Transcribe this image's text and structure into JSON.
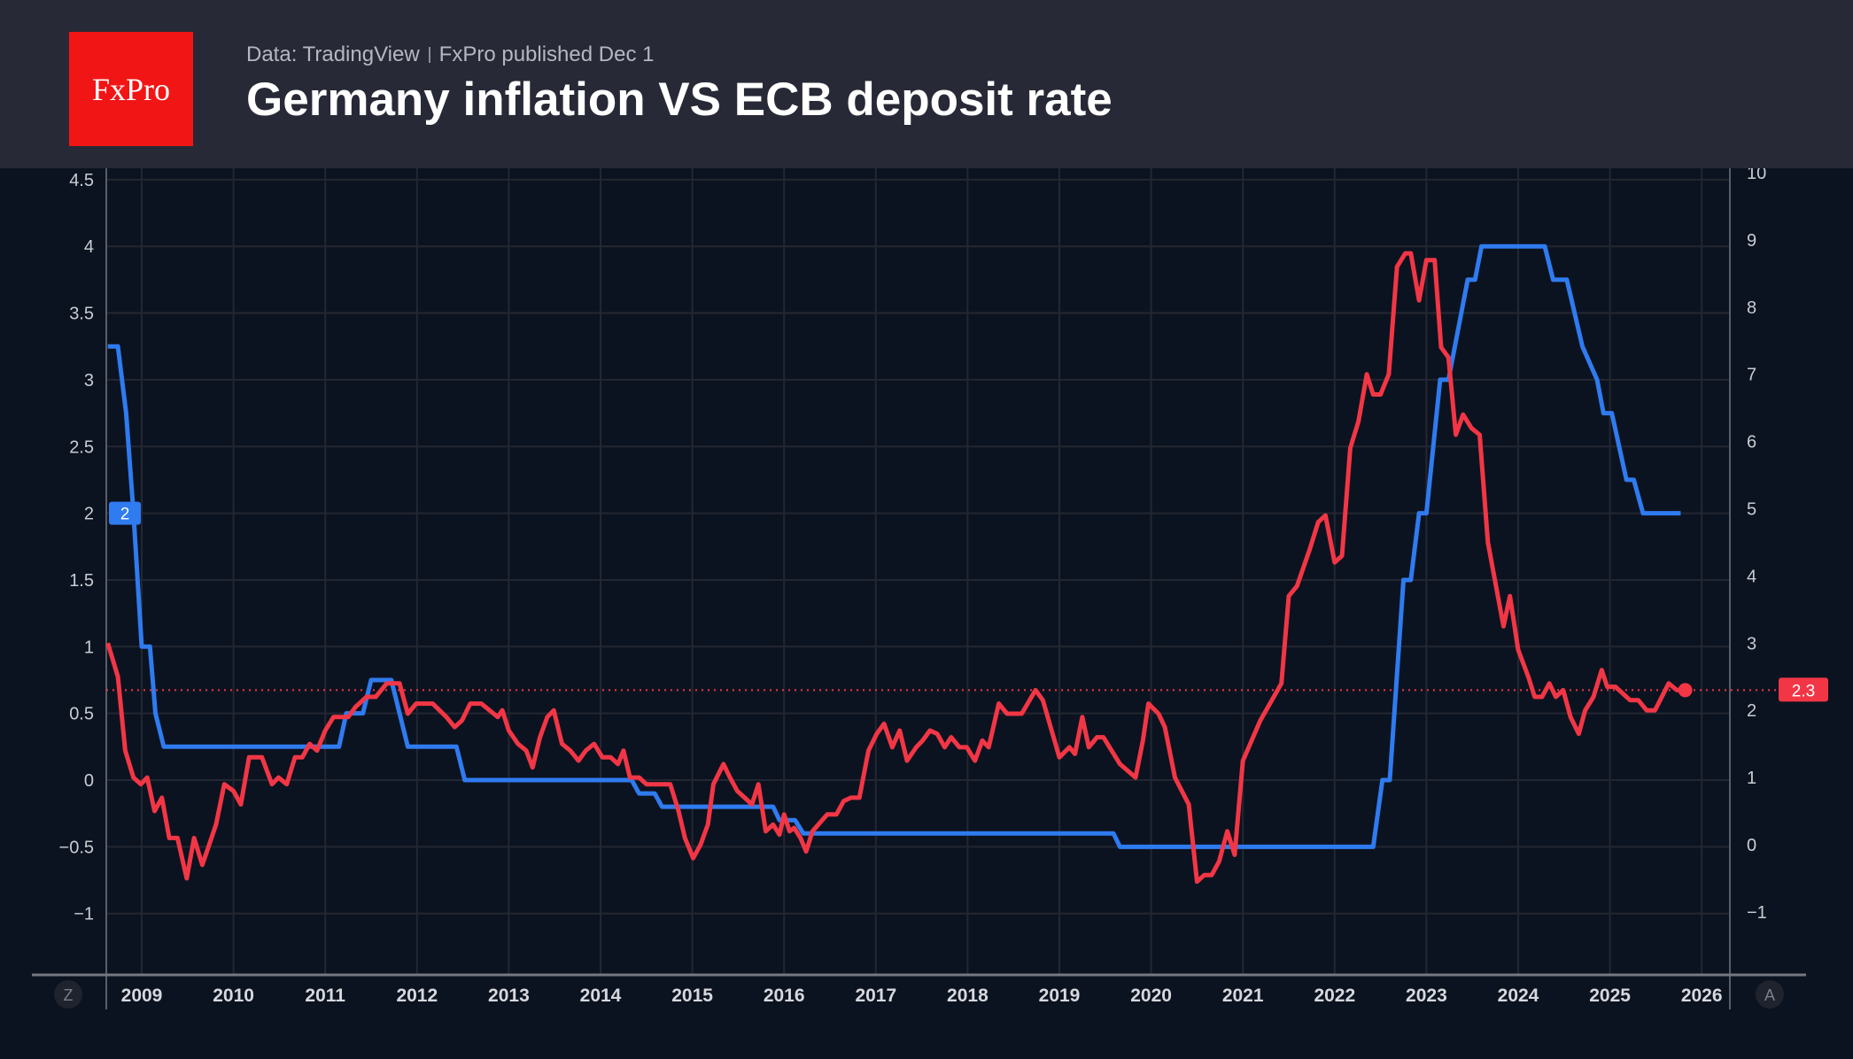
{
  "header": {
    "logo_text": "FxPro",
    "source": "Data: TradingView",
    "publisher": "FxPro published Dec 1",
    "title": "Germany inflation VS ECB deposit rate"
  },
  "controls": {
    "left_button": "Z",
    "right_button": "A"
  },
  "chart_data": {
    "type": "line",
    "title": "Germany inflation VS ECB deposit rate",
    "x_axis": {
      "ticks": [
        "2009",
        "2010",
        "2011",
        "2012",
        "2013",
        "2014",
        "2015",
        "2016",
        "2017",
        "2018",
        "2019",
        "2020",
        "2021",
        "2022",
        "2023",
        "2024",
        "2025",
        "2026"
      ],
      "range": [
        2008.6,
        2026.3
      ]
    },
    "left_axis": {
      "ticks": [
        "4.5",
        "4",
        "3.5",
        "3",
        "2.5",
        "2",
        "1.5",
        "1",
        "0.5",
        "0",
        "−0.5",
        "−1"
      ],
      "range": [
        -1.45,
        4.6
      ]
    },
    "right_axis": {
      "ticks": [
        "10",
        "9",
        "8",
        "7",
        "6",
        "5",
        "4",
        "3",
        "2",
        "1",
        "0",
        "−1"
      ],
      "range": [
        -1.9,
        10.1
      ]
    },
    "grid": true,
    "colors": {
      "ecb_rate": "#2f7bf0",
      "inflation": "#f23645"
    },
    "series": [
      {
        "key": "ecb_rate",
        "axis": "left",
        "last_value_label": "2",
        "points": [
          [
            2008.63,
            3.25
          ],
          [
            2008.74,
            3.25
          ],
          [
            2008.83,
            2.75
          ],
          [
            2008.91,
            2.0
          ],
          [
            2009.0,
            1.0
          ],
          [
            2009.09,
            1.0
          ],
          [
            2009.15,
            0.5
          ],
          [
            2009.24,
            0.25
          ],
          [
            2011.15,
            0.25
          ],
          [
            2011.23,
            0.5
          ],
          [
            2011.41,
            0.5
          ],
          [
            2011.5,
            0.75
          ],
          [
            2011.72,
            0.75
          ],
          [
            2011.81,
            0.5
          ],
          [
            2011.9,
            0.25
          ],
          [
            2012.43,
            0.25
          ],
          [
            2012.52,
            0.0
          ],
          [
            2014.34,
            0.0
          ],
          [
            2014.42,
            -0.1
          ],
          [
            2014.59,
            -0.1
          ],
          [
            2014.67,
            -0.2
          ],
          [
            2015.88,
            -0.2
          ],
          [
            2015.95,
            -0.3
          ],
          [
            2016.12,
            -0.3
          ],
          [
            2016.21,
            -0.4
          ],
          [
            2019.59,
            -0.4
          ],
          [
            2019.66,
            -0.5
          ],
          [
            2022.42,
            -0.5
          ],
          [
            2022.52,
            0.0
          ],
          [
            2022.6,
            0.0
          ],
          [
            2022.75,
            1.5
          ],
          [
            2022.83,
            1.5
          ],
          [
            2022.92,
            2.0
          ],
          [
            2023.0,
            2.0
          ],
          [
            2023.15,
            3.0
          ],
          [
            2023.24,
            3.0
          ],
          [
            2023.45,
            3.75
          ],
          [
            2023.53,
            3.75
          ],
          [
            2023.6,
            4.0
          ],
          [
            2024.29,
            4.0
          ],
          [
            2024.38,
            3.75
          ],
          [
            2024.53,
            3.75
          ],
          [
            2024.7,
            3.25
          ],
          [
            2024.86,
            3.0
          ],
          [
            2024.93,
            2.75
          ],
          [
            2025.02,
            2.75
          ],
          [
            2025.18,
            2.25
          ],
          [
            2025.26,
            2.25
          ],
          [
            2025.36,
            2.0
          ],
          [
            2025.77,
            2.0
          ]
        ]
      },
      {
        "key": "inflation",
        "axis": "right",
        "last_value_label": "2.3",
        "points": [
          [
            2008.63,
            3.0
          ],
          [
            2008.74,
            2.5
          ],
          [
            2008.82,
            1.4
          ],
          [
            2008.91,
            1.0
          ],
          [
            2008.99,
            0.9
          ],
          [
            2009.06,
            1.0
          ],
          [
            2009.14,
            0.5
          ],
          [
            2009.22,
            0.7
          ],
          [
            2009.3,
            0.1
          ],
          [
            2009.39,
            0.1
          ],
          [
            2009.49,
            -0.5
          ],
          [
            2009.57,
            0.1
          ],
          [
            2009.66,
            -0.3
          ],
          [
            2009.81,
            0.3
          ],
          [
            2009.9,
            0.9
          ],
          [
            2010.0,
            0.8
          ],
          [
            2010.08,
            0.6
          ],
          [
            2010.17,
            1.3
          ],
          [
            2010.31,
            1.3
          ],
          [
            2010.42,
            0.9
          ],
          [
            2010.49,
            1.0
          ],
          [
            2010.58,
            0.9
          ],
          [
            2010.67,
            1.3
          ],
          [
            2010.75,
            1.3
          ],
          [
            2010.83,
            1.5
          ],
          [
            2010.91,
            1.4
          ],
          [
            2011.0,
            1.7
          ],
          [
            2011.09,
            1.9
          ],
          [
            2011.25,
            1.9
          ],
          [
            2011.33,
            2.05
          ],
          [
            2011.45,
            2.2
          ],
          [
            2011.55,
            2.2
          ],
          [
            2011.67,
            2.4
          ],
          [
            2011.81,
            2.4
          ],
          [
            2011.9,
            1.95
          ],
          [
            2011.99,
            2.1
          ],
          [
            2012.17,
            2.1
          ],
          [
            2012.32,
            1.9
          ],
          [
            2012.41,
            1.75
          ],
          [
            2012.49,
            1.85
          ],
          [
            2012.58,
            2.1
          ],
          [
            2012.7,
            2.1
          ],
          [
            2012.88,
            1.9
          ],
          [
            2012.93,
            2.0
          ],
          [
            2013.0,
            1.7
          ],
          [
            2013.1,
            1.5
          ],
          [
            2013.19,
            1.4
          ],
          [
            2013.26,
            1.15
          ],
          [
            2013.34,
            1.6
          ],
          [
            2013.42,
            1.9
          ],
          [
            2013.49,
            2.0
          ],
          [
            2013.58,
            1.5
          ],
          [
            2013.67,
            1.4
          ],
          [
            2013.76,
            1.25
          ],
          [
            2013.84,
            1.4
          ],
          [
            2013.93,
            1.5
          ],
          [
            2014.02,
            1.3
          ],
          [
            2014.11,
            1.3
          ],
          [
            2014.19,
            1.2
          ],
          [
            2014.25,
            1.4
          ],
          [
            2014.32,
            1.0
          ],
          [
            2014.42,
            1.0
          ],
          [
            2014.5,
            0.9
          ],
          [
            2014.76,
            0.9
          ],
          [
            2014.85,
            0.5
          ],
          [
            2014.92,
            0.1
          ],
          [
            2015.01,
            -0.2
          ],
          [
            2015.09,
            0.0
          ],
          [
            2015.17,
            0.3
          ],
          [
            2015.23,
            0.9
          ],
          [
            2015.34,
            1.2
          ],
          [
            2015.41,
            1.0
          ],
          [
            2015.49,
            0.8
          ],
          [
            2015.57,
            0.7
          ],
          [
            2015.65,
            0.6
          ],
          [
            2015.72,
            0.9
          ],
          [
            2015.8,
            0.2
          ],
          [
            2015.88,
            0.3
          ],
          [
            2015.95,
            0.15
          ],
          [
            2016.0,
            0.45
          ],
          [
            2016.06,
            0.2
          ],
          [
            2016.11,
            0.25
          ],
          [
            2016.18,
            0.1
          ],
          [
            2016.24,
            -0.1
          ],
          [
            2016.31,
            0.2
          ],
          [
            2016.47,
            0.45
          ],
          [
            2016.57,
            0.45
          ],
          [
            2016.65,
            0.65
          ],
          [
            2016.73,
            0.7
          ],
          [
            2016.82,
            0.7
          ],
          [
            2016.92,
            1.4
          ],
          [
            2017.01,
            1.65
          ],
          [
            2017.09,
            1.8
          ],
          [
            2017.18,
            1.45
          ],
          [
            2017.26,
            1.7
          ],
          [
            2017.34,
            1.25
          ],
          [
            2017.44,
            1.45
          ],
          [
            2017.51,
            1.55
          ],
          [
            2017.59,
            1.7
          ],
          [
            2017.67,
            1.65
          ],
          [
            2017.75,
            1.45
          ],
          [
            2017.82,
            1.6
          ],
          [
            2017.91,
            1.45
          ],
          [
            2017.99,
            1.45
          ],
          [
            2018.08,
            1.25
          ],
          [
            2018.16,
            1.55
          ],
          [
            2018.23,
            1.45
          ],
          [
            2018.34,
            2.1
          ],
          [
            2018.43,
            1.95
          ],
          [
            2018.59,
            1.95
          ],
          [
            2018.74,
            2.3
          ],
          [
            2018.82,
            2.15
          ],
          [
            2019.0,
            1.3
          ],
          [
            2019.11,
            1.45
          ],
          [
            2019.17,
            1.35
          ],
          [
            2019.25,
            1.9
          ],
          [
            2019.32,
            1.45
          ],
          [
            2019.41,
            1.6
          ],
          [
            2019.48,
            1.6
          ],
          [
            2019.66,
            1.2
          ],
          [
            2019.83,
            1.0
          ],
          [
            2019.91,
            1.55
          ],
          [
            2019.97,
            2.1
          ],
          [
            2020.08,
            1.95
          ],
          [
            2020.15,
            1.75
          ],
          [
            2020.26,
            1.0
          ],
          [
            2020.41,
            0.6
          ],
          [
            2020.5,
            -0.55
          ],
          [
            2020.58,
            -0.45
          ],
          [
            2020.66,
            -0.45
          ],
          [
            2020.74,
            -0.25
          ],
          [
            2020.83,
            0.2
          ],
          [
            2020.91,
            -0.15
          ],
          [
            2021.0,
            1.25
          ],
          [
            2021.19,
            1.85
          ],
          [
            2021.42,
            2.4
          ],
          [
            2021.5,
            3.7
          ],
          [
            2021.59,
            3.85
          ],
          [
            2021.73,
            4.4
          ],
          [
            2021.82,
            4.8
          ],
          [
            2021.9,
            4.9
          ],
          [
            2022.0,
            4.2
          ],
          [
            2022.08,
            4.3
          ],
          [
            2022.17,
            5.9
          ],
          [
            2022.26,
            6.3
          ],
          [
            2022.35,
            7.0
          ],
          [
            2022.42,
            6.7
          ],
          [
            2022.5,
            6.7
          ],
          [
            2022.59,
            7.0
          ],
          [
            2022.68,
            8.6
          ],
          [
            2022.77,
            8.8
          ],
          [
            2022.83,
            8.8
          ],
          [
            2022.92,
            8.1
          ],
          [
            2023.0,
            8.7
          ],
          [
            2023.09,
            8.7
          ],
          [
            2023.16,
            7.4
          ],
          [
            2023.24,
            7.25
          ],
          [
            2023.32,
            6.1
          ],
          [
            2023.4,
            6.4
          ],
          [
            2023.49,
            6.2
          ],
          [
            2023.58,
            6.1
          ],
          [
            2023.67,
            4.5
          ],
          [
            2023.84,
            3.25
          ],
          [
            2023.91,
            3.7
          ],
          [
            2024.0,
            2.9
          ],
          [
            2024.11,
            2.5
          ],
          [
            2024.18,
            2.2
          ],
          [
            2024.26,
            2.2
          ],
          [
            2024.34,
            2.4
          ],
          [
            2024.41,
            2.2
          ],
          [
            2024.49,
            2.3
          ],
          [
            2024.57,
            1.9
          ],
          [
            2024.66,
            1.65
          ],
          [
            2024.73,
            2.0
          ],
          [
            2024.82,
            2.2
          ],
          [
            2024.91,
            2.6
          ],
          [
            2024.97,
            2.35
          ],
          [
            2025.06,
            2.35
          ],
          [
            2025.22,
            2.15
          ],
          [
            2025.31,
            2.15
          ],
          [
            2025.4,
            2.0
          ],
          [
            2025.49,
            2.0
          ],
          [
            2025.64,
            2.4
          ],
          [
            2025.73,
            2.3
          ],
          [
            2025.82,
            2.3
          ]
        ]
      }
    ]
  }
}
